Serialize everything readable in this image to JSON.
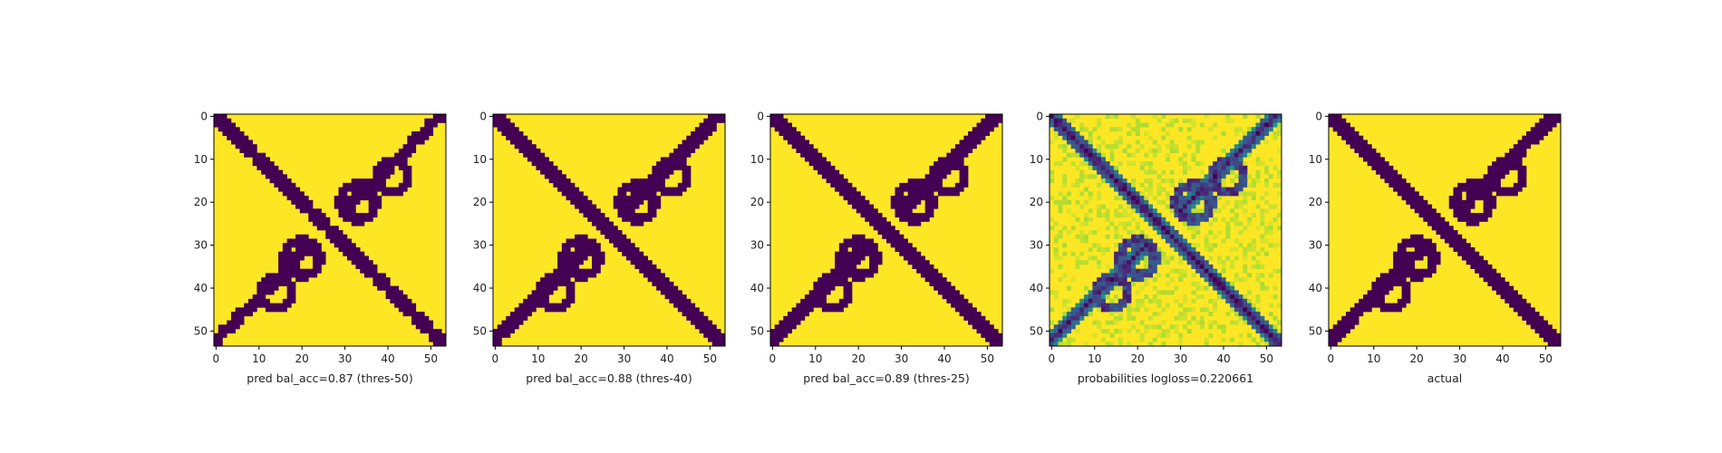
{
  "figure": {
    "panel_captions": [
      "pred bal_acc=0.87 (thres-50)",
      "pred bal_acc=0.88 (thres-40)",
      "pred bal_acc=0.89 (thres-25)",
      "probabilities logloss=0.220661",
      "actual"
    ]
  },
  "chart_data": [
    {
      "type": "heatmap",
      "title": "",
      "xlabel": "pred bal_acc=0.87 (thres-50)",
      "ylabel": "",
      "grid_size": [
        54,
        54
      ],
      "xlim": [
        -0.5,
        53.5
      ],
      "ylim": [
        53.5,
        -0.5
      ],
      "x_ticks": [
        0,
        10,
        20,
        30,
        40,
        50
      ],
      "y_ticks": [
        0,
        10,
        20,
        30,
        40,
        50
      ],
      "colormap": "viridis",
      "value_range": [
        0,
        1
      ],
      "binary": true,
      "contact_cells_value": 0,
      "background_value": 1,
      "structure": "anti-diagonal band from (0,0) to (53,53) plus secondary contact arcs"
    },
    {
      "type": "heatmap",
      "title": "",
      "xlabel": "pred bal_acc=0.88 (thres-40)",
      "ylabel": "",
      "grid_size": [
        54,
        54
      ],
      "xlim": [
        -0.5,
        53.5
      ],
      "ylim": [
        53.5,
        -0.5
      ],
      "x_ticks": [
        0,
        10,
        20,
        30,
        40,
        50
      ],
      "y_ticks": [
        0,
        10,
        20,
        30,
        40,
        50
      ],
      "colormap": "viridis",
      "value_range": [
        0,
        1
      ],
      "binary": true,
      "contact_cells_value": 0,
      "background_value": 1
    },
    {
      "type": "heatmap",
      "title": "",
      "xlabel": "pred bal_acc=0.89 (thres-25)",
      "ylabel": "",
      "grid_size": [
        54,
        54
      ],
      "xlim": [
        -0.5,
        53.5
      ],
      "ylim": [
        53.5,
        -0.5
      ],
      "x_ticks": [
        0,
        10,
        20,
        30,
        40,
        50
      ],
      "y_ticks": [
        0,
        10,
        20,
        30,
        40,
        50
      ],
      "colormap": "viridis",
      "value_range": [
        0,
        1
      ],
      "binary": true,
      "contact_cells_value": 0,
      "background_value": 1
    },
    {
      "type": "heatmap",
      "title": "",
      "xlabel": "probabilities logloss=0.220661",
      "ylabel": "",
      "grid_size": [
        54,
        54
      ],
      "xlim": [
        -0.5,
        53.5
      ],
      "ylim": [
        53.5,
        -0.5
      ],
      "x_ticks": [
        0,
        10,
        20,
        30,
        40,
        50
      ],
      "y_ticks": [
        0,
        10,
        20,
        30,
        40,
        50
      ],
      "colormap": "viridis",
      "value_range": [
        0,
        1
      ],
      "binary": false
    },
    {
      "type": "heatmap",
      "title": "",
      "xlabel": "actual",
      "ylabel": "",
      "grid_size": [
        54,
        54
      ],
      "xlim": [
        -0.5,
        53.5
      ],
      "ylim": [
        53.5,
        -0.5
      ],
      "x_ticks": [
        0,
        10,
        20,
        30,
        40,
        50
      ],
      "y_ticks": [
        0,
        10,
        20,
        30,
        40,
        50
      ],
      "colormap": "viridis",
      "value_range": [
        0,
        1
      ],
      "binary": true,
      "contact_cells_value": 0,
      "background_value": 1
    }
  ],
  "colors": {
    "viridis_low": "#440154",
    "viridis_mid": "#21918c",
    "viridis_high": "#fde725"
  }
}
